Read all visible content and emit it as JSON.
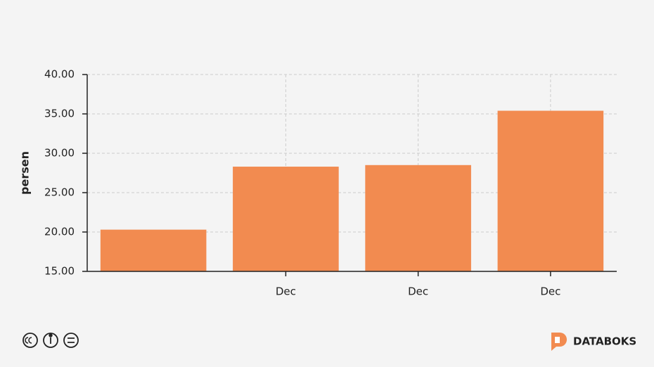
{
  "chart_data": {
    "type": "bar",
    "y_label": "persen",
    "categories": [
      null,
      "Dec",
      "Dec",
      "Dec"
    ],
    "values": [
      20.3,
      28.3,
      28.5,
      35.4
    ],
    "color": "#f28b50",
    "ylim": [
      15,
      40
    ],
    "yticks": [
      {
        "value": 15,
        "label": "15.00"
      },
      {
        "value": 20,
        "label": "20.00"
      },
      {
        "value": 25,
        "label": "25.00"
      },
      {
        "value": 30,
        "label": "30.00"
      },
      {
        "value": 35,
        "label": "35.00"
      },
      {
        "value": 40,
        "label": "40.00"
      }
    ],
    "grid": true
  },
  "footer": {
    "brand": "DATABOKS"
  }
}
